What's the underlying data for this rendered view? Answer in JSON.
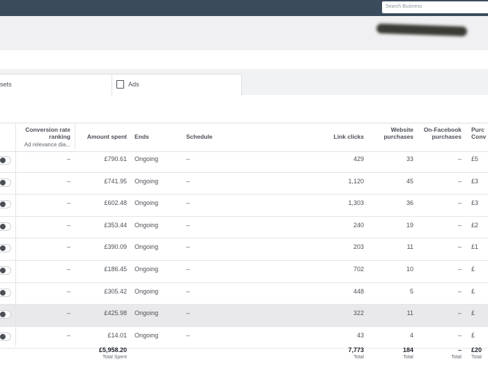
{
  "search": {
    "placeholder": "Search Business"
  },
  "tabs": [
    "sets",
    "Ads"
  ],
  "table": {
    "header": [
      "Conversion rate ranking",
      "Amount spent",
      "Ends",
      "Schedule",
      "Link clicks",
      "Website purchases",
      "On-Facebook purchases",
      "Purc Conv"
    ],
    "header_sub": "Ad relevance dia...",
    "rows": [
      [
        "–",
        "£790.61",
        "Ongoing",
        "–",
        "429",
        "33",
        "–",
        "£5"
      ],
      [
        "–",
        "£741.95",
        "Ongoing",
        "–",
        "1,120",
        "45",
        "–",
        "£3"
      ],
      [
        "–",
        "£602.48",
        "Ongoing",
        "–",
        "1,303",
        "36",
        "–",
        "£3"
      ],
      [
        "–",
        "£353.44",
        "Ongoing",
        "–",
        "240",
        "19",
        "–",
        "£2"
      ],
      [
        "–",
        "£390.09",
        "Ongoing",
        "–",
        "203",
        "11",
        "–",
        "£1"
      ],
      [
        "–",
        "£186.45",
        "Ongoing",
        "–",
        "702",
        "10",
        "–",
        "£"
      ],
      [
        "–",
        "£305.42",
        "Ongoing",
        "–",
        "448",
        "5",
        "–",
        "£"
      ],
      [
        "–",
        "£425.98",
        "Ongoing",
        "–",
        "322",
        "11",
        "–",
        "£"
      ],
      [
        "–",
        "£14.01",
        "Ongoing",
        "–",
        "43",
        "4",
        "–",
        "£"
      ]
    ],
    "totals": [
      {
        "col": 1,
        "value": "£5,958.20",
        "label": "Total Spent"
      },
      {
        "col": 4,
        "value": "7,773",
        "label": "Total"
      },
      {
        "col": 5,
        "value": "184",
        "label": "Total"
      },
      {
        "col": 6,
        "value": "–",
        "label": "Total"
      },
      {
        "col": 7,
        "value": "£20",
        "label": "Total"
      }
    ]
  }
}
